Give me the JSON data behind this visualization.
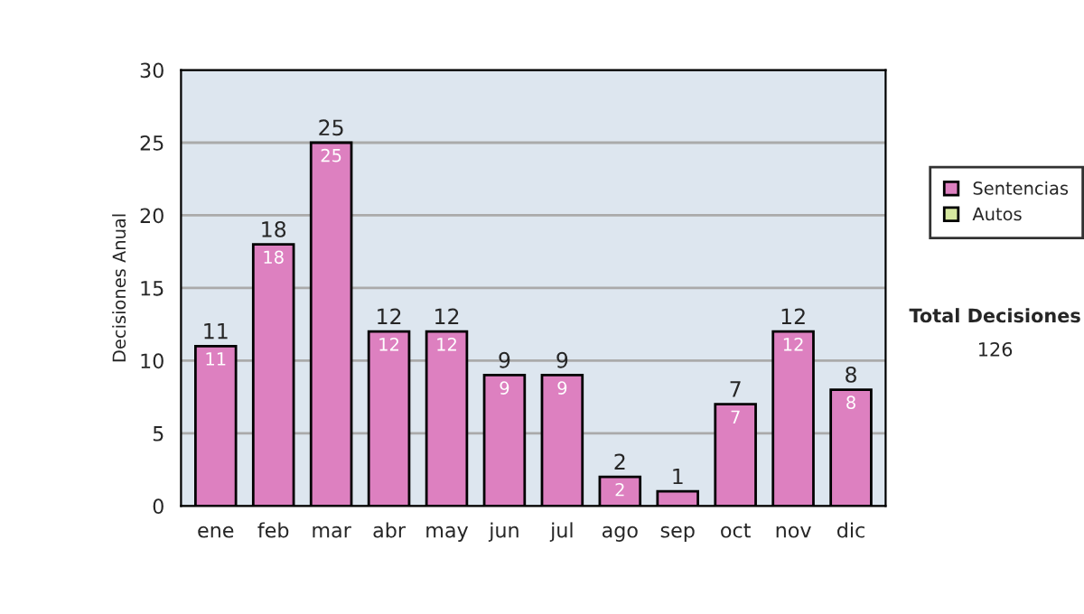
{
  "chart_data": {
    "type": "bar",
    "ylabel": "Decisiones Anual",
    "categories": [
      "ene",
      "feb",
      "mar",
      "abr",
      "may",
      "jun",
      "jul",
      "ago",
      "sep",
      "oct",
      "nov",
      "dic"
    ],
    "stacked": true,
    "series": [
      {
        "name": "Sentencias",
        "color": "#dd80c0",
        "values": [
          11,
          18,
          25,
          12,
          12,
          9,
          9,
          2,
          1,
          7,
          12,
          8
        ],
        "value_labels": [
          "11",
          "18",
          "25",
          "12",
          "12",
          "9",
          "9",
          "2",
          null,
          "7",
          "12",
          "8"
        ]
      },
      {
        "name": "Autos",
        "color": "#d6e8a0",
        "values": [
          0,
          0,
          0,
          0,
          0,
          0,
          0,
          0,
          0,
          0,
          0,
          0
        ]
      }
    ],
    "totals": [
      "11",
      "18",
      "25",
      "12",
      "12",
      "9",
      "9",
      "2",
      "1",
      "7",
      "12",
      "8"
    ],
    "ylim": [
      0,
      30
    ],
    "yticks": [
      0,
      5,
      10,
      15,
      20,
      25,
      30
    ],
    "grid": "y",
    "legend": "right",
    "annotations": [
      "Total Decisiones",
      "126"
    ]
  }
}
